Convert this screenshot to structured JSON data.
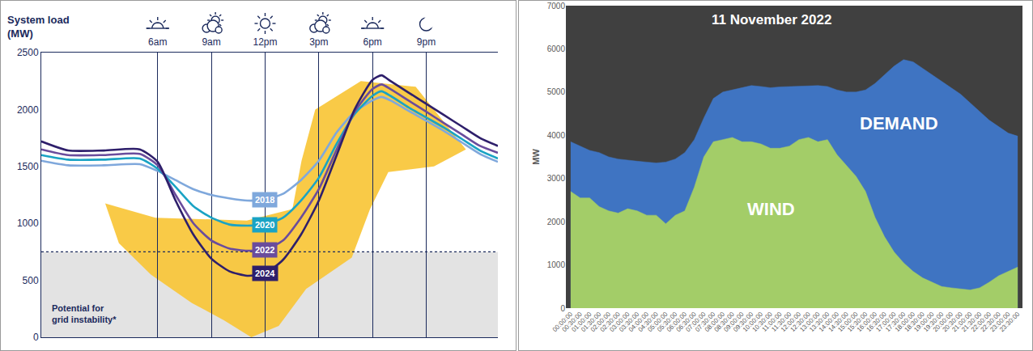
{
  "chart_data": [
    {
      "type": "line",
      "ylabel": "System load (MW)",
      "x": [
        -0.5,
        1,
        3,
        5,
        6,
        7,
        8,
        9,
        10,
        11,
        12,
        13,
        14,
        15,
        16,
        17,
        18,
        18.5,
        19,
        20,
        21,
        22,
        23,
        24,
        25
      ],
      "xlim": [
        -0.5,
        25
      ],
      "xticks": [
        {
          "value": 6,
          "label": "6am"
        },
        {
          "value": 9,
          "label": "9am"
        },
        {
          "value": 12,
          "label": "12pm"
        },
        {
          "value": 15,
          "label": "3pm"
        },
        {
          "value": 18,
          "label": "6pm"
        },
        {
          "value": 21,
          "label": "9pm"
        }
      ],
      "ylim": [
        0,
        2500
      ],
      "yticks": [
        0,
        500,
        1000,
        1500,
        2000,
        2500
      ],
      "grid": "x",
      "threshold": 750,
      "threshold_label": "Potential for grid instability*",
      "series": [
        {
          "name": "2018",
          "color": "#7fa8dc",
          "values": [
            1550,
            1510,
            1510,
            1520,
            1460,
            1380,
            1300,
            1250,
            1220,
            1200,
            1210,
            1260,
            1380,
            1550,
            1800,
            1980,
            2080,
            2110,
            2080,
            1990,
            1900,
            1810,
            1710,
            1610,
            1540
          ]
        },
        {
          "name": "2020",
          "color": "#1aa3c4",
          "values": [
            1600,
            1560,
            1560,
            1570,
            1480,
            1320,
            1150,
            1050,
            990,
            980,
            990,
            1050,
            1200,
            1400,
            1700,
            1960,
            2120,
            2160,
            2120,
            2020,
            1930,
            1840,
            1740,
            1640,
            1570
          ]
        },
        {
          "name": "2022",
          "color": "#6a4c9c",
          "values": [
            1650,
            1600,
            1600,
            1610,
            1510,
            1250,
            1000,
            850,
            780,
            760,
            770,
            850,
            1050,
            1300,
            1650,
            1980,
            2180,
            2220,
            2180,
            2080,
            1980,
            1880,
            1780,
            1680,
            1620
          ]
        },
        {
          "name": "2024",
          "color": "#2e1f6b",
          "values": [
            1720,
            1640,
            1640,
            1650,
            1540,
            1200,
            900,
            690,
            580,
            540,
            560,
            680,
            900,
            1200,
            1600,
            2000,
            2260,
            2300,
            2250,
            2150,
            2050,
            1950,
            1850,
            1750,
            1680
          ]
        }
      ]
    },
    {
      "type": "area",
      "title": "11 November 2022",
      "categories": [
        "00:00:00",
        "00:30:00",
        "01:00:00",
        "01:30:00",
        "02:00:00",
        "02:30:00",
        "03:00:00",
        "03:30:00",
        "04:00:00",
        "04:30:00",
        "05:00:00",
        "05:30:00",
        "06:00:00",
        "06:30:00",
        "07:00:00",
        "07:30:00",
        "08:00:00",
        "08:30:00",
        "09:00:00",
        "09:30:00",
        "10:00:00",
        "10:30:00",
        "11:00:00",
        "11:30:00",
        "12:00:00",
        "12:30:00",
        "13:00:00",
        "13:30:00",
        "14:00:00",
        "14:30:00",
        "15:00:00",
        "15:30:00",
        "16:00:00",
        "16:30:00",
        "17:00:00",
        "17:30:00",
        "18:00:00",
        "18:30:00",
        "19:00:00",
        "19:30:00",
        "20:00:00",
        "20:30:00",
        "21:00:00",
        "21:30:00",
        "22:00:00",
        "22:30:00",
        "23:00:00",
        "23:30:00"
      ],
      "ylabel": "MW",
      "ylim": [
        0,
        7000
      ],
      "yticks": [
        0,
        1000,
        2000,
        3000,
        4000,
        5000,
        6000,
        7000
      ],
      "grid": false,
      "stacked": false,
      "series": [
        {
          "name": "DEMAND",
          "color": "#3f74c2",
          "values": [
            3850,
            3750,
            3650,
            3600,
            3500,
            3450,
            3420,
            3400,
            3380,
            3360,
            3380,
            3450,
            3600,
            3900,
            4400,
            4850,
            5000,
            5050,
            5100,
            5150,
            5130,
            5100,
            5120,
            5130,
            5140,
            5150,
            5150,
            5130,
            5050,
            5000,
            5000,
            5050,
            5200,
            5400,
            5600,
            5750,
            5700,
            5550,
            5400,
            5250,
            5100,
            4950,
            4750,
            4550,
            4350,
            4200,
            4050,
            3980
          ]
        },
        {
          "name": "WIND",
          "color": "#a3cd68",
          "values": [
            2700,
            2550,
            2550,
            2350,
            2250,
            2200,
            2300,
            2250,
            2150,
            2150,
            1950,
            2150,
            2250,
            2800,
            3500,
            3850,
            3900,
            3950,
            3850,
            3850,
            3800,
            3700,
            3700,
            3750,
            3900,
            3950,
            3850,
            3900,
            3550,
            3300,
            3050,
            2700,
            2100,
            1650,
            1300,
            1050,
            850,
            700,
            600,
            500,
            470,
            440,
            420,
            470,
            600,
            750,
            850,
            950
          ]
        }
      ]
    }
  ]
}
